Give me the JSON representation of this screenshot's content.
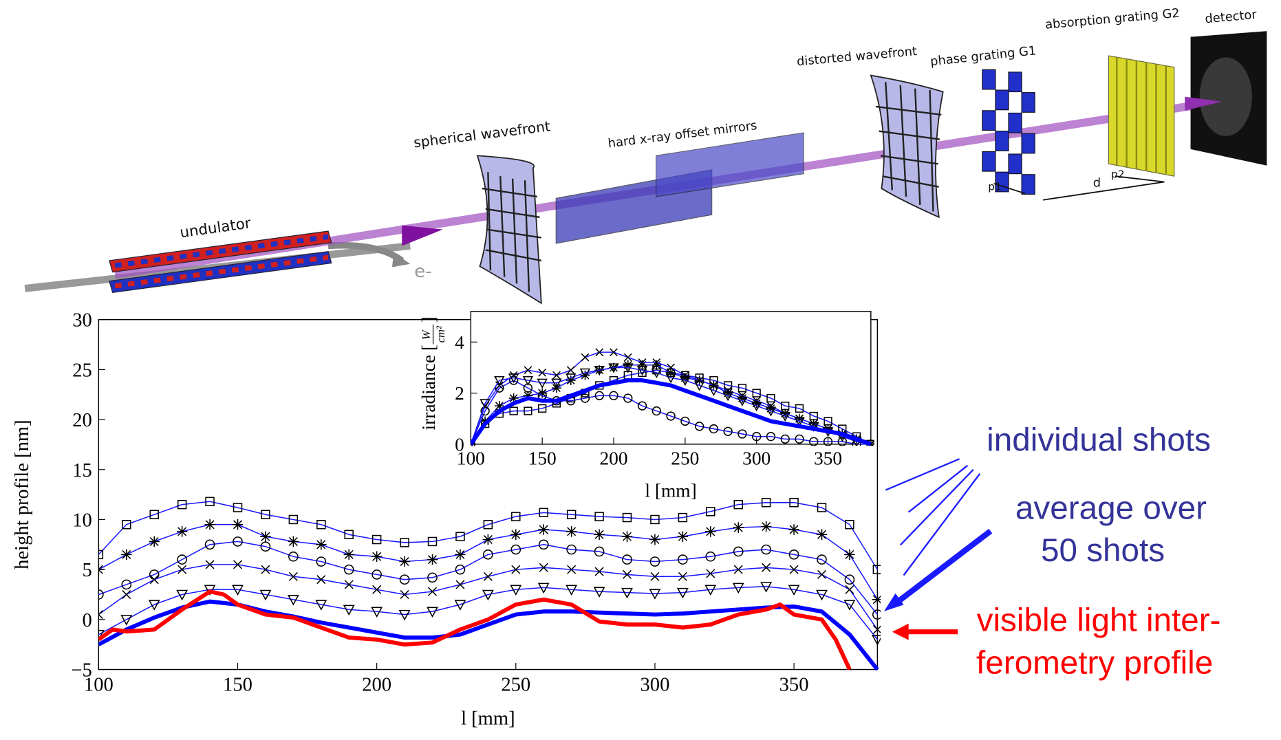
{
  "diagram": {
    "labels": [
      "undulator",
      "e-",
      "spherical wavefront",
      "hard x-ray offset mirrors",
      "distorted wavefront",
      "phase grating G1",
      "absorption grating G2",
      "detector",
      "p1",
      "d",
      "p2"
    ]
  },
  "chart_data": [
    {
      "type": "line",
      "xlabel": "l [mm]",
      "ylabel": "height profile [nm]",
      "xlim": [
        100,
        380
      ],
      "ylim": [
        -5,
        30
      ],
      "xticks": [
        100,
        150,
        200,
        250,
        300,
        350
      ],
      "yticks": [
        {
          "value": -5,
          "label": "−5"
        },
        0,
        5,
        10,
        15,
        20,
        25,
        30
      ],
      "x": [
        100,
        110,
        120,
        130,
        140,
        150,
        160,
        170,
        180,
        190,
        200,
        210,
        220,
        230,
        240,
        250,
        260,
        270,
        280,
        290,
        300,
        310,
        320,
        330,
        340,
        350,
        360,
        370,
        380
      ],
      "annotations": [
        {
          "text": "individual shots",
          "color": "#333399"
        },
        {
          "text": "average over",
          "color": "#333399"
        },
        {
          "text": "50 shots",
          "color": "#333399"
        },
        {
          "text": "visible light inter-",
          "color": "#ff0000"
        },
        {
          "text": "ferometry profile",
          "color": "#ff0000"
        }
      ],
      "series": [
        {
          "color": "#1a1aff",
          "marker": "square",
          "values": [
            6.5,
            9.5,
            10.5,
            11.5,
            11.8,
            11.2,
            10.5,
            10,
            9.5,
            8.5,
            8,
            7.7,
            7.8,
            8.3,
            9.5,
            10.3,
            10.7,
            10.5,
            10.3,
            10.2,
            10,
            10.2,
            10.8,
            11.5,
            11.7,
            11.7,
            11.2,
            9.5,
            5
          ]
        },
        {
          "color": "#1a1aff",
          "marker": "star",
          "values": [
            5,
            6.5,
            7.8,
            8.8,
            9.5,
            9.5,
            8.3,
            7.8,
            7.5,
            6.5,
            6.3,
            5.8,
            6,
            6.5,
            8,
            8.5,
            9,
            8.8,
            8.5,
            8.3,
            8,
            8.3,
            8.8,
            9.2,
            9.3,
            9,
            8.5,
            6.5,
            2
          ]
        },
        {
          "color": "#1a1aff",
          "marker": "circle",
          "values": [
            2.5,
            3.5,
            4.5,
            6,
            7.5,
            7.8,
            7.3,
            6.3,
            5.8,
            5,
            4.5,
            4,
            4.2,
            5,
            6.5,
            7,
            7.5,
            7,
            6.8,
            6,
            5.8,
            6,
            6.3,
            6.8,
            7,
            6.5,
            6,
            4,
            0.5
          ]
        },
        {
          "color": "#1a1aff",
          "marker": "x",
          "values": [
            0.5,
            2.5,
            4,
            5,
            5.5,
            5.5,
            5,
            4.3,
            4,
            3.5,
            3,
            2.5,
            2.8,
            3.5,
            4.3,
            5,
            5.2,
            5,
            4.8,
            4.5,
            4.3,
            4.3,
            4.6,
            5,
            5.2,
            5,
            4.5,
            3,
            -1
          ]
        },
        {
          "color": "#1a1aff",
          "marker": "triangle",
          "values": [
            -1.5,
            0,
            1.5,
            2.5,
            3,
            3,
            2.5,
            2,
            1.5,
            1,
            0.8,
            0.5,
            0.8,
            1.5,
            2.5,
            3,
            3.2,
            3,
            2.8,
            2.7,
            2.6,
            2.7,
            3,
            3.2,
            3.3,
            3,
            2.5,
            1.5,
            -2
          ]
        },
        {
          "color": "#0000ff",
          "values": [
            -2.5,
            -1,
            0.2,
            1.2,
            1.8,
            1.5,
            0.8,
            0.3,
            -0.3,
            -0.8,
            -1.3,
            -1.8,
            -1.8,
            -1.5,
            -0.5,
            0.5,
            0.8,
            0.8,
            0.7,
            0.6,
            0.5,
            0.6,
            0.8,
            1,
            1.2,
            1.3,
            0.8,
            -1.5,
            -5
          ]
        },
        {
          "color": "#ff0000",
          "x": [
            100,
            105,
            110,
            120,
            130,
            140,
            145,
            150,
            160,
            170,
            180,
            190,
            200,
            210,
            220,
            230,
            240,
            250,
            260,
            270,
            280,
            290,
            300,
            310,
            320,
            330,
            340,
            345,
            350,
            360,
            365,
            370
          ],
          "values": [
            -2,
            -1,
            -1.2,
            -1,
            1,
            2.8,
            2.5,
            1.5,
            0.5,
            0.2,
            -0.8,
            -1.8,
            -2,
            -2.5,
            -2.3,
            -1,
            0,
            1.5,
            2,
            1.5,
            -0.2,
            -0.5,
            -0.5,
            -0.8,
            -0.5,
            0.5,
            1,
            1.5,
            0.5,
            0,
            -2,
            -5
          ]
        }
      ]
    },
    {
      "type": "line",
      "xlabel": "l [mm]",
      "ylabel": "irradiance",
      "yunit": [
        "W",
        "cm²"
      ],
      "xlim": [
        100,
        380
      ],
      "ylim": [
        0,
        5.2
      ],
      "xticks": [
        100,
        150,
        200,
        250,
        300,
        350
      ],
      "yticks": [
        0,
        2,
        4
      ],
      "x": [
        100,
        110,
        120,
        130,
        140,
        150,
        160,
        170,
        180,
        190,
        200,
        210,
        220,
        230,
        240,
        250,
        260,
        270,
        280,
        290,
        300,
        310,
        320,
        330,
        340,
        350,
        360,
        370,
        380
      ],
      "series": [
        {
          "color": "#1a1aff",
          "marker": "square",
          "values": [
            0,
            0.8,
            1.2,
            1.3,
            1.3,
            1.4,
            1.6,
            1.8,
            2.0,
            2.3,
            2.5,
            2.7,
            2.8,
            2.9,
            2.8,
            2.7,
            2.6,
            2.5,
            2.3,
            2.2,
            2.0,
            1.8,
            1.5,
            1.4,
            1.1,
            0.9,
            0.6,
            0.3,
            0
          ]
        },
        {
          "color": "#1a1aff",
          "marker": "star",
          "values": [
            0,
            0.9,
            1.5,
            1.8,
            1.9,
            2.0,
            2.2,
            2.5,
            2.7,
            2.9,
            3.0,
            3.1,
            3.1,
            3.1,
            2.8,
            2.6,
            2.5,
            2.3,
            2.0,
            1.8,
            1.6,
            1.4,
            1.2,
            1.0,
            0.8,
            0.6,
            0.4,
            0.2,
            0
          ]
        },
        {
          "color": "#1a1aff",
          "marker": "circle",
          "values": [
            0,
            1.3,
            2.2,
            2.5,
            2.2,
            1.9,
            1.7,
            1.7,
            1.8,
            1.9,
            1.9,
            1.8,
            1.5,
            1.3,
            1.1,
            0.9,
            0.7,
            0.6,
            0.5,
            0.4,
            0.3,
            0.3,
            0.2,
            0.2,
            0.1,
            0.1,
            0.1,
            0,
            0
          ]
        },
        {
          "color": "#1a1aff",
          "marker": "x",
          "values": [
            0,
            1.5,
            2.3,
            2.7,
            2.9,
            2.8,
            2.7,
            2.9,
            3.4,
            3.6,
            3.6,
            3.4,
            3.2,
            3.2,
            3.0,
            2.7,
            2.5,
            2.3,
            2.1,
            1.9,
            1.7,
            1.5,
            1.2,
            1.0,
            0.8,
            0.6,
            0.4,
            0.2,
            0
          ]
        },
        {
          "color": "#1a1aff",
          "marker": "triangle",
          "values": [
            0,
            1.6,
            2.5,
            2.6,
            2.5,
            2.4,
            2.4,
            2.6,
            2.8,
            2.9,
            3.0,
            3.0,
            2.9,
            2.8,
            2.6,
            2.5,
            2.3,
            2.1,
            1.9,
            1.7,
            1.5,
            1.3,
            1.1,
            0.9,
            0.7,
            0.5,
            0.3,
            0.1,
            0
          ]
        },
        {
          "color": "#0000ff",
          "values": [
            0,
            0.8,
            1.3,
            1.6,
            1.8,
            1.7,
            1.7,
            1.9,
            2.1,
            2.3,
            2.4,
            2.5,
            2.5,
            2.4,
            2.3,
            2.1,
            1.9,
            1.7,
            1.5,
            1.3,
            1.1,
            0.9,
            0.8,
            0.7,
            0.6,
            0.5,
            0.4,
            0.2,
            0
          ]
        }
      ]
    }
  ]
}
